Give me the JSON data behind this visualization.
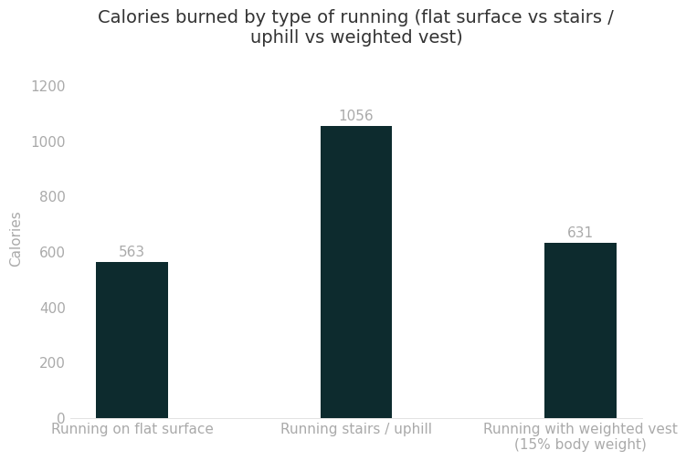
{
  "title": "Calories burned by type of running (flat surface vs stairs /\nuphill vs weighted vest)",
  "categories": [
    "Running on flat surface",
    "Running stairs / uphill",
    "Running with weighted vest\n(15% body weight)"
  ],
  "values": [
    563,
    1056,
    631
  ],
  "bar_color": "#0d2b2e",
  "bar_width": 0.32,
  "ylabel": "Calories",
  "ylim": [
    0,
    1300
  ],
  "yticks": [
    0,
    200,
    400,
    600,
    800,
    1000,
    1200
  ],
  "label_color": "#aaaaaa",
  "label_fontsize": 11,
  "title_fontsize": 14,
  "tick_fontsize": 11,
  "ylabel_fontsize": 11,
  "background_color": "#ffffff",
  "spine_color": "#dddddd"
}
